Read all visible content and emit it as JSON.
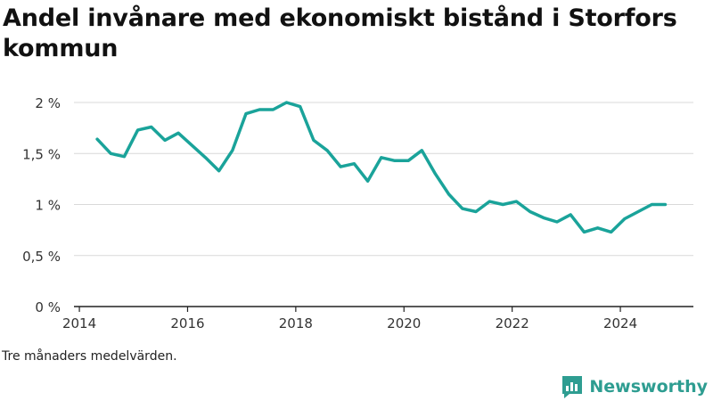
{
  "header": {
    "title": "Andel invånare med ekonomiskt bistånd i Storfors kommun"
  },
  "footer": {
    "note": "Tre månaders medelvärden.",
    "brand": "Newsworthy",
    "brand_icon": "chart-logo-icon"
  },
  "colors": {
    "line": "#1aa39a",
    "grid": "#d9d9d9",
    "axis": "#222222",
    "brand": "#2e9d91"
  },
  "chart_data": {
    "type": "line",
    "title": "Andel invånare med ekonomiskt bistånd i Storfors kommun",
    "xlabel": "",
    "ylabel": "",
    "xlim": [
      2013.9,
      2025.35
    ],
    "ylim": [
      0,
      2
    ],
    "x_ticks": [
      2014,
      2016,
      2018,
      2020,
      2022,
      2024
    ],
    "y_ticks": [
      {
        "value": 0,
        "label": "0 %"
      },
      {
        "value": 0.5,
        "label": "0,5 %"
      },
      {
        "value": 1,
        "label": "1 %"
      },
      {
        "value": 1.5,
        "label": "1,5 %"
      },
      {
        "value": 2,
        "label": "2 %"
      }
    ],
    "grid": true,
    "legend": "none",
    "series": [
      {
        "x": [
          2014.33,
          2014.58,
          2014.83,
          2015.08,
          2015.33,
          2015.58,
          2015.83,
          2016.08,
          2016.33,
          2016.58,
          2016.83,
          2017.08,
          2017.33,
          2017.58,
          2017.83,
          2018.08,
          2018.33,
          2018.58,
          2018.83,
          2019.08,
          2019.33,
          2019.58,
          2019.83,
          2020.08,
          2020.33,
          2020.58,
          2020.83,
          2021.08,
          2021.33,
          2021.58,
          2021.83,
          2022.08,
          2022.33,
          2022.58,
          2022.83,
          2023.08,
          2023.33,
          2023.58,
          2023.83,
          2024.08,
          2024.33,
          2024.58,
          2024.83
        ],
        "values": [
          1.64,
          1.5,
          1.47,
          1.73,
          1.76,
          1.63,
          1.7,
          1.58,
          1.46,
          1.33,
          1.53,
          1.89,
          1.93,
          1.93,
          2.0,
          1.96,
          1.63,
          1.53,
          1.37,
          1.4,
          1.23,
          1.46,
          1.43,
          1.43,
          1.53,
          1.3,
          1.1,
          0.96,
          0.93,
          1.03,
          1.0,
          1.03,
          0.93,
          0.87,
          0.83,
          0.9,
          0.73,
          0.77,
          0.73,
          0.86,
          0.93,
          1.0,
          1.0
        ]
      }
    ]
  }
}
